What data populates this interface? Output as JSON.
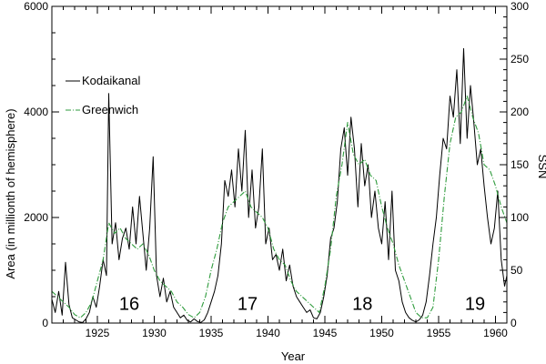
{
  "chart_data": {
    "type": "line",
    "xlabel": "Year",
    "ylabel_left": "Area (in millionth of hemisphere)",
    "ylabel_right": "SSN",
    "xlim": [
      1921,
      1961
    ],
    "ylim_left": [
      0,
      6000
    ],
    "ylim_right": [
      0,
      300
    ],
    "x_ticks": [
      1925,
      1930,
      1935,
      1940,
      1945,
      1950,
      1955,
      1960
    ],
    "x_tick_labels": [
      "1925",
      "1930",
      "1935",
      "1940",
      "1945",
      "1950",
      "1955",
      "1960"
    ],
    "y_left_ticks": [
      0,
      2000,
      4000,
      6000
    ],
    "y_left_tick_labels": [
      "0",
      "2000",
      "4000",
      "6000"
    ],
    "y_right_ticks": [
      0,
      50,
      100,
      150,
      200,
      250,
      300
    ],
    "y_right_tick_labels": [
      "0",
      "50",
      "100",
      "150",
      "200",
      "250",
      "300"
    ],
    "legend_placement": "top-left",
    "cycle_labels": [
      {
        "text": "16",
        "x": 1927.8,
        "y": 250
      },
      {
        "text": "17",
        "x": 1938.2,
        "y": 250
      },
      {
        "text": "18",
        "x": 1948.3,
        "y": 250
      },
      {
        "text": "19",
        "x": 1958.2,
        "y": 250
      }
    ],
    "series": [
      {
        "name": "Kodaikanal",
        "axis": "left",
        "color": "#000000",
        "style": "solid",
        "x": [
          1921.0,
          1921.3,
          1921.6,
          1921.9,
          1922.2,
          1922.5,
          1922.8,
          1923.1,
          1923.4,
          1923.7,
          1924.0,
          1924.3,
          1924.6,
          1924.9,
          1925.2,
          1925.5,
          1925.8,
          1926.0,
          1926.3,
          1926.6,
          1926.9,
          1927.2,
          1927.5,
          1927.8,
          1928.1,
          1928.4,
          1928.7,
          1929.0,
          1929.3,
          1929.6,
          1929.9,
          1930.2,
          1930.5,
          1930.8,
          1931.1,
          1931.4,
          1931.7,
          1932.0,
          1932.3,
          1932.6,
          1932.9,
          1933.2,
          1933.5,
          1933.8,
          1934.1,
          1934.4,
          1934.7,
          1935.0,
          1935.3,
          1935.6,
          1935.9,
          1936.2,
          1936.5,
          1936.8,
          1937.1,
          1937.4,
          1937.7,
          1938.0,
          1938.3,
          1938.6,
          1938.9,
          1939.2,
          1939.5,
          1939.8,
          1940.1,
          1940.4,
          1940.7,
          1941.0,
          1941.3,
          1941.6,
          1941.9,
          1942.2,
          1942.5,
          1942.8,
          1943.1,
          1943.4,
          1943.7,
          1944.0,
          1944.3,
          1944.6,
          1944.9,
          1945.2,
          1945.5,
          1945.8,
          1946.1,
          1946.4,
          1946.7,
          1947.0,
          1947.3,
          1947.6,
          1947.9,
          1948.2,
          1948.5,
          1948.8,
          1949.1,
          1949.4,
          1949.7,
          1950.0,
          1950.3,
          1950.6,
          1950.9,
          1951.2,
          1951.5,
          1951.8,
          1952.1,
          1952.4,
          1952.7,
          1953.0,
          1953.3,
          1953.6,
          1953.9,
          1954.2,
          1954.5,
          1954.8,
          1955.1,
          1955.4,
          1955.7,
          1956.0,
          1956.3,
          1956.6,
          1956.9,
          1957.2,
          1957.5,
          1957.8,
          1958.1,
          1958.4,
          1958.7,
          1959.0,
          1959.3,
          1959.6,
          1959.9,
          1960.2,
          1960.5,
          1960.8,
          1961.0
        ],
        "values": [
          450,
          200,
          600,
          150,
          1150,
          350,
          100,
          60,
          20,
          10,
          80,
          200,
          500,
          300,
          700,
          1200,
          900,
          4350,
          1500,
          1900,
          1200,
          1600,
          1800,
          1400,
          2200,
          1500,
          2400,
          1700,
          1000,
          1800,
          3150,
          900,
          500,
          850,
          400,
          600,
          300,
          200,
          100,
          150,
          50,
          20,
          80,
          30,
          10,
          60,
          200,
          400,
          600,
          900,
          1500,
          2700,
          2400,
          2900,
          2200,
          3300,
          2500,
          3650,
          2000,
          2900,
          1800,
          2200,
          3300,
          1500,
          1800,
          1200,
          1300,
          1000,
          1400,
          800,
          1100,
          700,
          500,
          400,
          300,
          200,
          250,
          100,
          80,
          200,
          500,
          900,
          1600,
          1800,
          2300,
          3300,
          3700,
          2800,
          3900,
          3300,
          2200,
          3400,
          2600,
          3000,
          2000,
          2500,
          1800,
          1500,
          2300,
          1200,
          2500,
          1000,
          800,
          400,
          200,
          100,
          50,
          20,
          60,
          150,
          400,
          900,
          1500,
          2000,
          2800,
          3500,
          3300,
          4300,
          3900,
          4800,
          3400,
          5200,
          3500,
          4500,
          3800,
          3000,
          3300,
          2600,
          2000,
          1500,
          1800,
          2500,
          1200,
          700,
          900
        ]
      },
      {
        "name": "Greenwich",
        "axis": "right",
        "color": "#2e9b3c",
        "style": "dash-dot",
        "x": [
          1921.0,
          1921.5,
          1922.0,
          1922.5,
          1923.0,
          1923.5,
          1924.0,
          1924.5,
          1925.0,
          1925.5,
          1926.0,
          1926.5,
          1927.0,
          1927.5,
          1928.0,
          1928.5,
          1929.0,
          1929.5,
          1930.0,
          1930.5,
          1931.0,
          1931.5,
          1932.0,
          1932.5,
          1933.0,
          1933.5,
          1934.0,
          1934.5,
          1935.0,
          1935.5,
          1936.0,
          1936.5,
          1937.0,
          1937.5,
          1938.0,
          1938.5,
          1939.0,
          1939.5,
          1940.0,
          1940.5,
          1941.0,
          1941.5,
          1942.0,
          1942.5,
          1943.0,
          1943.5,
          1944.0,
          1944.5,
          1945.0,
          1945.5,
          1946.0,
          1946.5,
          1947.0,
          1947.5,
          1948.0,
          1948.5,
          1949.0,
          1949.5,
          1950.0,
          1950.5,
          1951.0,
          1951.5,
          1952.0,
          1952.5,
          1953.0,
          1953.5,
          1954.0,
          1954.5,
          1955.0,
          1955.5,
          1956.0,
          1956.5,
          1957.0,
          1957.5,
          1958.0,
          1958.5,
          1959.0,
          1959.5,
          1960.0,
          1960.5,
          1961.0
        ],
        "values": [
          30,
          25,
          20,
          15,
          8,
          5,
          10,
          20,
          40,
          60,
          95,
          85,
          90,
          80,
          75,
          70,
          75,
          65,
          50,
          40,
          35,
          30,
          20,
          15,
          8,
          5,
          10,
          25,
          50,
          70,
          95,
          110,
          115,
          120,
          125,
          110,
          105,
          100,
          90,
          70,
          60,
          55,
          40,
          30,
          25,
          20,
          15,
          10,
          35,
          70,
          120,
          150,
          190,
          160,
          150,
          155,
          140,
          135,
          110,
          90,
          75,
          55,
          40,
          25,
          10,
          5,
          5,
          15,
          60,
          120,
          170,
          195,
          200,
          215,
          195,
          180,
          150,
          145,
          130,
          110,
          95
        ]
      }
    ]
  }
}
